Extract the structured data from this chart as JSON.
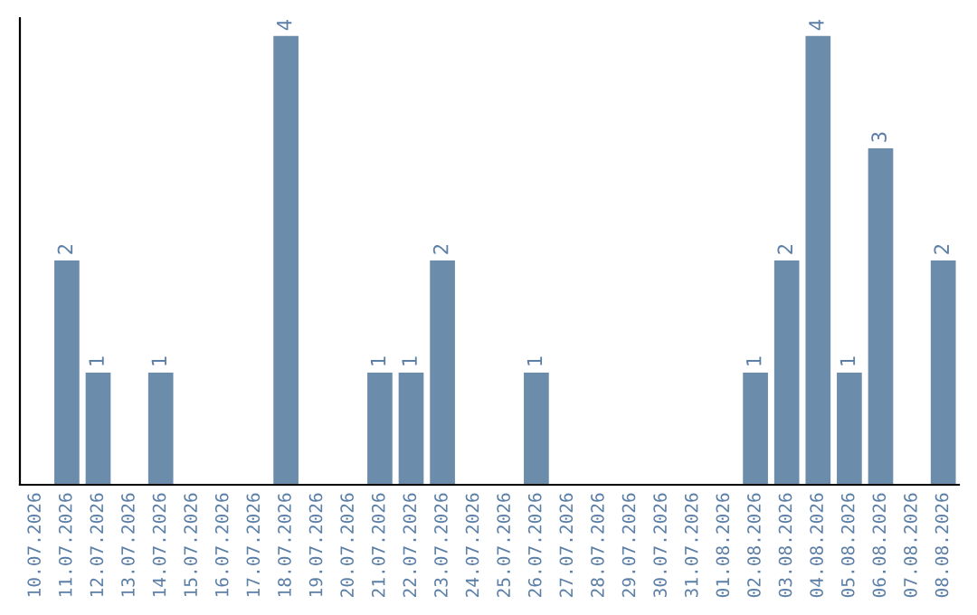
{
  "chart_data": {
    "type": "bar",
    "categories": [
      "10.07.2026",
      "11.07.2026",
      "12.07.2026",
      "13.07.2026",
      "14.07.2026",
      "15.07.2026",
      "16.07.2026",
      "17.07.2026",
      "18.07.2026",
      "19.07.2026",
      "20.07.2026",
      "21.07.2026",
      "22.07.2026",
      "23.07.2026",
      "24.07.2026",
      "25.07.2026",
      "26.07.2026",
      "27.07.2026",
      "28.07.2026",
      "29.07.2026",
      "30.07.2026",
      "31.07.2026",
      "01.08.2026",
      "02.08.2026",
      "03.08.2026",
      "04.08.2026",
      "05.08.2026",
      "06.08.2026",
      "07.08.2026",
      "08.08.2026"
    ],
    "values": [
      0,
      2,
      1,
      0,
      1,
      0,
      0,
      0,
      4,
      0,
      0,
      1,
      1,
      2,
      0,
      0,
      1,
      0,
      0,
      0,
      0,
      0,
      0,
      1,
      2,
      4,
      1,
      3,
      0,
      2
    ],
    "value_labels": [
      null,
      "2",
      "1",
      null,
      "1",
      null,
      null,
      null,
      "4",
      null,
      null,
      "1",
      "1",
      "2",
      null,
      null,
      "1",
      null,
      null,
      null,
      null,
      null,
      null,
      "1",
      "2",
      "4",
      "1",
      "3",
      null,
      "2"
    ],
    "color": "#6b8cab",
    "tick_labels": "x",
    "grid": false
  }
}
